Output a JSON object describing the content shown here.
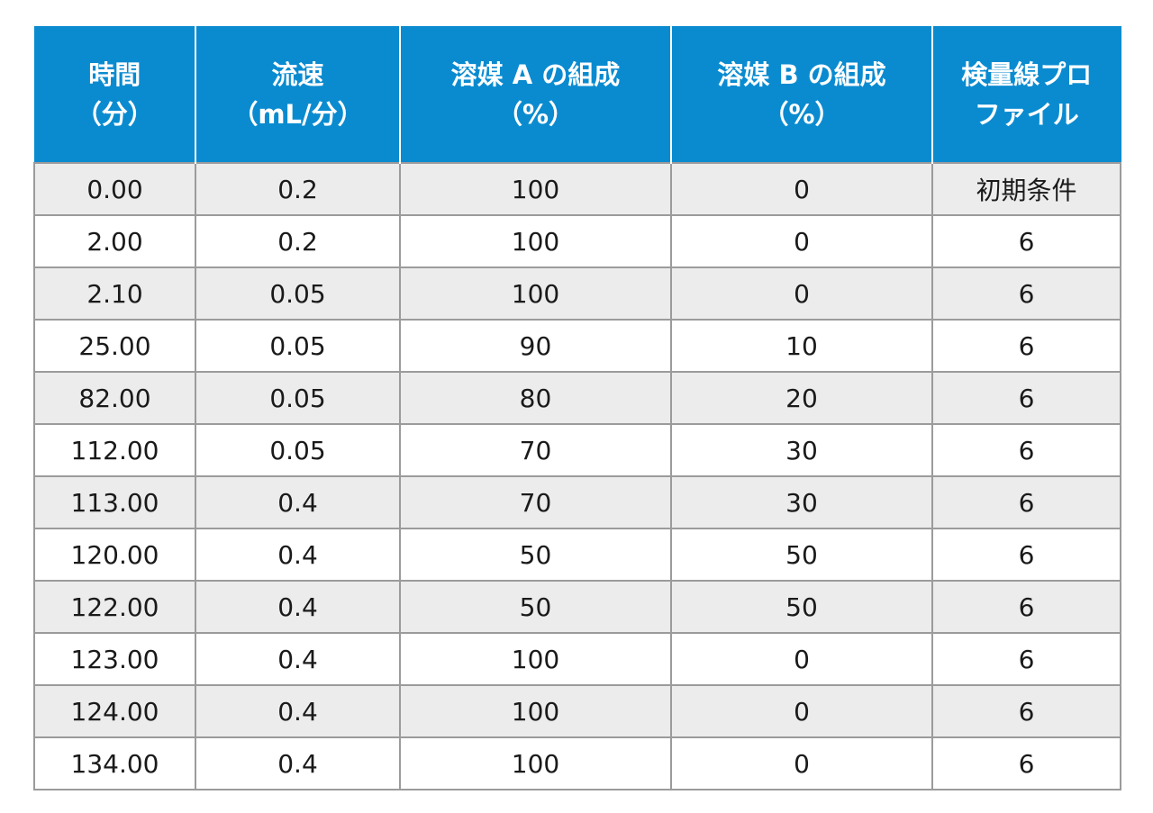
{
  "table": {
    "headers": [
      {
        "line1": "時間",
        "line2": "（分）"
      },
      {
        "line1": "流速",
        "line2": "（mL/分）"
      },
      {
        "line1": "溶媒 A の組成",
        "line2": "（%）"
      },
      {
        "line1": "溶媒 B の組成",
        "line2": "（%）"
      },
      {
        "line1": "検量線プロ",
        "line2": "ファイル"
      }
    ],
    "rows": [
      [
        "0.00",
        "0.2",
        "100",
        "0",
        "初期条件"
      ],
      [
        "2.00",
        "0.2",
        "100",
        "0",
        "6"
      ],
      [
        "2.10",
        "0.05",
        "100",
        "0",
        "6"
      ],
      [
        "25.00",
        "0.05",
        "90",
        "10",
        "6"
      ],
      [
        "82.00",
        "0.05",
        "80",
        "20",
        "6"
      ],
      [
        "112.00",
        "0.05",
        "70",
        "30",
        "6"
      ],
      [
        "113.00",
        "0.4",
        "70",
        "30",
        "6"
      ],
      [
        "120.00",
        "0.4",
        "50",
        "50",
        "6"
      ],
      [
        "122.00",
        "0.4",
        "50",
        "50",
        "6"
      ],
      [
        "123.00",
        "0.4",
        "100",
        "0",
        "6"
      ],
      [
        "124.00",
        "0.4",
        "100",
        "0",
        "6"
      ],
      [
        "134.00",
        "0.4",
        "100",
        "0",
        "6"
      ]
    ]
  },
  "colors": {
    "header_background": "#0a8bd0",
    "header_text": "#ffffff",
    "row_shaded": "#ececec",
    "grid_line": "#9b9b9b"
  }
}
